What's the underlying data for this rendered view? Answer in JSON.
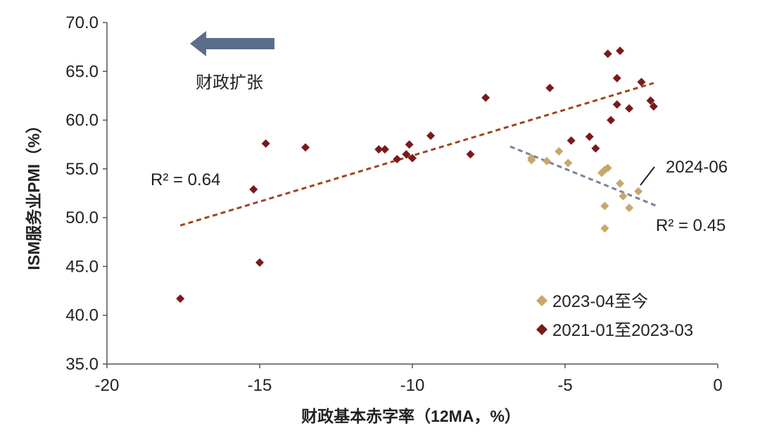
{
  "chart_data": {
    "type": "scatter",
    "xlabel": "财政基本赤字率（12MA，%）",
    "ylabel": "ISM服务业PMI（%）",
    "xlim": [
      -20,
      0
    ],
    "ylim": [
      35,
      70
    ],
    "x_ticks": [
      -20,
      -15,
      -10,
      -5,
      0
    ],
    "y_ticks": [
      35.0,
      40.0,
      45.0,
      50.0,
      55.0,
      60.0,
      65.0,
      70.0
    ],
    "grid": false,
    "legend_position": "bottom-right",
    "series": [
      {
        "name": "2023-04至今",
        "color": "#c9a66b",
        "marker": "diamond",
        "points": [
          [
            -6.1,
            56.1
          ],
          [
            -6.1,
            55.9
          ],
          [
            -5.6,
            55.8
          ],
          [
            -5.2,
            56.8
          ],
          [
            -4.9,
            55.6
          ],
          [
            -3.8,
            54.6
          ],
          [
            -3.7,
            54.9
          ],
          [
            -3.6,
            55.1
          ],
          [
            -3.2,
            53.5
          ],
          [
            -3.1,
            52.2
          ],
          [
            -2.6,
            52.7
          ],
          [
            -2.9,
            51.0
          ],
          [
            -3.7,
            51.2
          ],
          [
            -3.7,
            48.9
          ]
        ]
      },
      {
        "name": "2021-01至2023-03",
        "color": "#7a1a1a",
        "marker": "diamond",
        "points": [
          [
            -17.6,
            41.7
          ],
          [
            -15.0,
            45.4
          ],
          [
            -15.2,
            52.9
          ],
          [
            -14.8,
            57.6
          ],
          [
            -13.5,
            57.2
          ],
          [
            -11.1,
            57.0
          ],
          [
            -10.9,
            57.0
          ],
          [
            -10.5,
            56.0
          ],
          [
            -10.2,
            56.5
          ],
          [
            -10.1,
            57.5
          ],
          [
            -10.0,
            56.1
          ],
          [
            -9.4,
            58.4
          ],
          [
            -8.1,
            56.5
          ],
          [
            -7.6,
            62.3
          ],
          [
            -5.5,
            63.3
          ],
          [
            -4.8,
            57.9
          ],
          [
            -4.2,
            58.3
          ],
          [
            -4.0,
            57.1
          ],
          [
            -3.5,
            60.0
          ],
          [
            -3.3,
            61.6
          ],
          [
            -3.3,
            64.3
          ],
          [
            -3.6,
            66.8
          ],
          [
            -3.2,
            67.1
          ],
          [
            -2.9,
            61.2
          ],
          [
            -2.5,
            63.9
          ],
          [
            -2.2,
            62.0
          ],
          [
            -2.1,
            61.4
          ]
        ]
      }
    ],
    "trendlines": [
      {
        "series": "2021-01至2023-03",
        "color": "#a0441e",
        "style": "dashed",
        "from": [
          -17.6,
          49.2
        ],
        "to": [
          -2.1,
          63.8
        ],
        "r2_label": "R² = 0.64"
      },
      {
        "series": "2023-04至今",
        "color": "#7a8199",
        "style": "dashed",
        "from": [
          -6.8,
          57.3
        ],
        "to": [
          -2.0,
          51.2
        ],
        "r2_label": "R² = 0.45"
      }
    ],
    "annotations": {
      "arrow_text": "财政扩张",
      "callout_label": "2024-06",
      "callout_point": [
        -2.6,
        52.7
      ]
    }
  }
}
